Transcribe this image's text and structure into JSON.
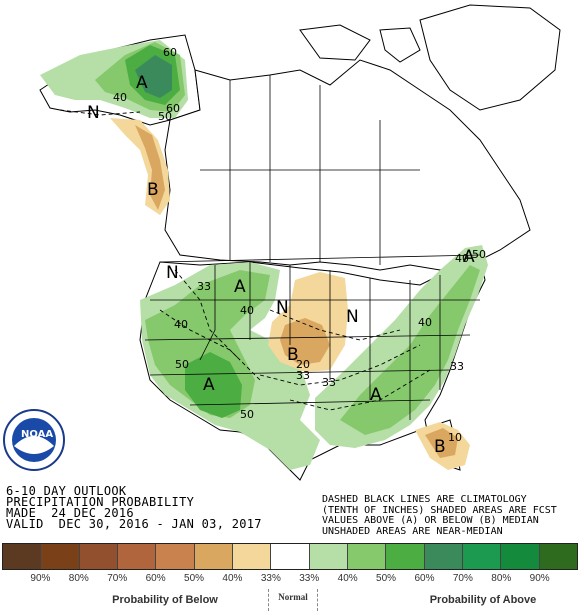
{
  "title_lines": [
    "6-10 DAY OUTLOOK",
    "PRECIPITATION PROBABILITY",
    "MADE  24 DEC 2016",
    "VALID  DEC 30, 2016 - JAN 03, 2017"
  ],
  "note_lines": [
    "DASHED BLACK LINES ARE CLIMATOLOGY",
    "(TENTH OF INCHES) SHADED AREAS ARE FCST",
    "VALUES ABOVE (A) OR BELOW (B) MEDIAN",
    "UNSHADED AREAS ARE NEAR-MEDIAN"
  ],
  "logo": {
    "text": "NOAA"
  },
  "legend": {
    "swatches": [
      "#5c3a21",
      "#7a4119",
      "#93502e",
      "#b0653c",
      "#c9824d",
      "#d9a75f",
      "#f4d79a",
      "#ffffff",
      "#b5dfa6",
      "#86c96d",
      "#4cad43",
      "#3a8a5c",
      "#1c9a4f",
      "#148a3d",
      "#2e6b1f"
    ],
    "ticks": [
      "90%",
      "80%",
      "70%",
      "60%",
      "50%",
      "40%",
      "33%",
      "33%",
      "40%",
      "50%",
      "60%",
      "70%",
      "80%",
      "90%"
    ],
    "below_label": "Probability of Below",
    "normal_label": "Normal",
    "above_label": "Probability of Above"
  },
  "map_labels": {
    "A_alaska": "A",
    "B_bc": "B",
    "N_alaska": "N",
    "N_nw": "N",
    "A_north": "A",
    "N_center": "N",
    "B_center": "B",
    "N_east": "N",
    "A_northeast": "A",
    "A_southwest": "A",
    "A_southeast": "A",
    "B_florida": "B"
  },
  "contour_labels": {
    "c60a": "60",
    "c60b": "60",
    "c40a": "40",
    "c50a": "50",
    "c33a": "33",
    "c40b": "40",
    "c40c": "40",
    "c50b": "50",
    "c50c": "50",
    "c20a": "20",
    "c33b": "33",
    "c33c": "33",
    "c40d": "40",
    "c33d": "33",
    "c10a": "10",
    "c40e": "40",
    "c50d": "50"
  }
}
